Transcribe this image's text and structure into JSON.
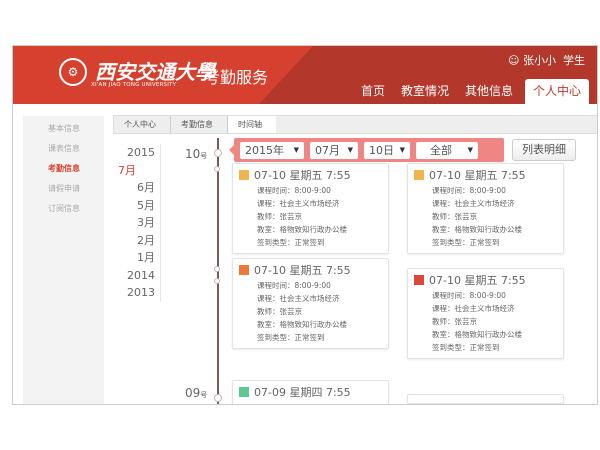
{
  "header": {
    "logo_text": "西安交通大學",
    "logo_en": "XI'AN JIAO TONG UNIVERSITY",
    "app_title": "考勤服务",
    "user_name": "张小小",
    "user_role": "学生",
    "nav": [
      {
        "label": "首页"
      },
      {
        "label": "教室情况"
      },
      {
        "label": "其他信息"
      },
      {
        "label": "个人中心",
        "active": true
      }
    ]
  },
  "sidebar": {
    "items": [
      {
        "label": "基本信息"
      },
      {
        "label": "课表信息"
      },
      {
        "label": "考勤信息",
        "active": true
      },
      {
        "label": "请假申请"
      },
      {
        "label": "订阅信息"
      }
    ]
  },
  "breadcrumb": [
    "个人中心",
    "考勤信息",
    "时间轴"
  ],
  "years": [
    "2015",
    "7月",
    "6月",
    "5月",
    "3月",
    "2月",
    "1月",
    "2014",
    "2013"
  ],
  "filter": {
    "year": "2015年",
    "month": "07月",
    "day": "10日",
    "type": "全部",
    "list_button": "列表明细"
  },
  "days": [
    {
      "num": "10",
      "unit": "号"
    },
    {
      "num": "09",
      "unit": "号"
    }
  ],
  "colors": {
    "header": "#b3372b",
    "accent": "#d6412f",
    "filter": "#ef8683",
    "timeline": "#7a5a52"
  },
  "labels": {
    "time": "课程时间：",
    "course": "课程：",
    "teacher": "教师：",
    "room": "教室：",
    "type": "签到类型："
  },
  "records": [
    {
      "title": "07-10 星期五 7:55",
      "icon_color": "#f0b450",
      "time": "8:00-9:00",
      "course": "社会主义市场经济",
      "teacher": "张芸京",
      "room": "格物致知行政办公楼",
      "type": "正常签到"
    },
    {
      "title": "07-10 星期五 7:55",
      "icon_color": "#f0b450",
      "time": "8:00-9:00",
      "course": "社会主义市场经济",
      "teacher": "张芸京",
      "room": "格物致知行政办公楼",
      "type": "正常签到"
    },
    {
      "title": "07-10 星期五 7:55",
      "icon_color": "#ee7a3a",
      "time": "8:00-9:00",
      "course": "社会主义市场经济",
      "teacher": "张芸京",
      "room": "格物致知行政办公楼",
      "type": "正常签到"
    },
    {
      "title": "07-10 星期五 7:55",
      "icon_color": "#d9483b",
      "time": "8:00-9:00",
      "course": "社会主义市场经济",
      "teacher": "张芸京",
      "room": "格物致知行政办公楼",
      "type": "正常签到"
    },
    {
      "title": "07-09 星期四 7:55",
      "icon_color": "#5cc98e"
    }
  ]
}
